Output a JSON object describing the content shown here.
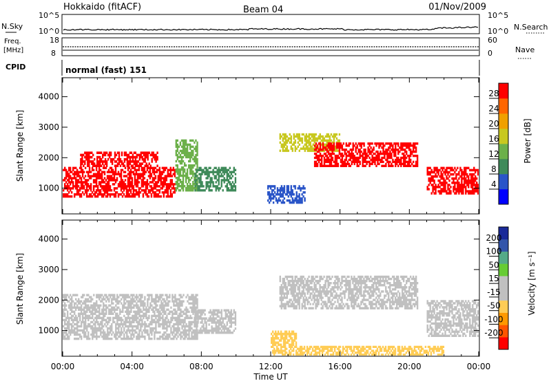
{
  "header": {
    "station": "Hokkaido (fitACF)",
    "beam": "Beam 04",
    "date": "01/Nov/2009"
  },
  "strip_panels": {
    "nsky": {
      "label": "N.Sky",
      "ticks": [
        "10^5",
        "10^0"
      ]
    },
    "nsearch": {
      "label": "N.Search",
      "ticks": [
        "10^5",
        "10^0"
      ]
    },
    "freq": {
      "label_top": "Freq.",
      "label_unit": "[MHz]",
      "ticks": [
        "18",
        "8"
      ]
    },
    "nave": {
      "label": "Nave",
      "ticks": [
        "60",
        "0"
      ]
    },
    "cpid": {
      "label": "CPID",
      "mode": "normal (fast) 151"
    }
  },
  "colors": {
    "power_scale": [
      "#0000ff",
      "#2a55c8",
      "#3f8a5a",
      "#6cb04a",
      "#c8c820",
      "#f0a000",
      "#ff6600",
      "#ff0000"
    ],
    "velocity_scale": [
      "#ff0000",
      "#ff5500",
      "#ff9900",
      "#ffcc55",
      "#c0c0c0",
      "#c0c0c0",
      "#66cc33",
      "#55aa88",
      "#3355aa",
      "#1a2a99"
    ],
    "ground_scatter": "#c0c0c0"
  },
  "chart_data": [
    {
      "type": "heatmap",
      "title": "",
      "xlabel": "Time UT",
      "ylabel": "Slant Range [km]",
      "xlim": [
        "00:00",
        "24:00"
      ],
      "ylim": [
        180,
        4600
      ],
      "x_ticks": [
        "00:00",
        "04:00",
        "08:00",
        "12:00",
        "16:00",
        "20:00",
        "00:00"
      ],
      "y_ticks": [
        "1000",
        "2000",
        "3000",
        "4000"
      ],
      "colorbar": {
        "label": "Power [dB]",
        "ticks": [
          "4",
          "8",
          "12",
          "16",
          "20",
          "24",
          "28"
        ],
        "range": [
          0,
          32
        ]
      },
      "regions": [
        {
          "t_start": 0.0,
          "t_end": 6.5,
          "r_start": 700,
          "r_end": 1700,
          "value": 30
        },
        {
          "t_start": 1.0,
          "t_end": 5.5,
          "r_start": 1700,
          "r_end": 2200,
          "value": 28
        },
        {
          "t_start": 6.5,
          "t_end": 7.8,
          "r_start": 900,
          "r_end": 2600,
          "value": 12
        },
        {
          "t_start": 7.6,
          "t_end": 10.0,
          "r_start": 900,
          "r_end": 1700,
          "value": 8
        },
        {
          "t_start": 11.8,
          "t_end": 14.0,
          "r_start": 500,
          "r_end": 1100,
          "value": 6
        },
        {
          "t_start": 12.5,
          "t_end": 16.0,
          "r_start": 2200,
          "r_end": 2800,
          "value": 16
        },
        {
          "t_start": 14.5,
          "t_end": 20.5,
          "r_start": 1700,
          "r_end": 2500,
          "value": 28
        },
        {
          "t_start": 21.0,
          "t_end": 24.0,
          "r_start": 800,
          "r_end": 1700,
          "value": 30
        }
      ]
    },
    {
      "type": "heatmap",
      "title": "",
      "xlabel": "Time UT",
      "ylabel": "Slant Range [km]",
      "xlim": [
        "00:00",
        "24:00"
      ],
      "ylim": [
        180,
        4600
      ],
      "x_ticks": [
        "00:00",
        "04:00",
        "08:00",
        "12:00",
        "16:00",
        "20:00",
        "00:00"
      ],
      "y_ticks": [
        "1000",
        "2000",
        "3000",
        "4000"
      ],
      "colorbar": {
        "label": "Velocity [m s⁻¹]",
        "ticks": [
          "200",
          "100",
          "50",
          "15",
          "-15",
          "-50",
          "-100",
          "-200"
        ],
        "range": [
          -250,
          250
        ]
      },
      "regions": [
        {
          "t_start": 0.0,
          "t_end": 7.8,
          "r_start": 700,
          "r_end": 2200,
          "value": 0,
          "ground_scatter": true
        },
        {
          "t_start": 7.6,
          "t_end": 10.0,
          "r_start": 900,
          "r_end": 1700,
          "value": 0,
          "ground_scatter": true
        },
        {
          "t_start": 12.5,
          "t_end": 20.5,
          "r_start": 1700,
          "r_end": 2800,
          "value": 0,
          "ground_scatter": true
        },
        {
          "t_start": 21.0,
          "t_end": 24.0,
          "r_start": 800,
          "r_end": 2000,
          "value": 0,
          "ground_scatter": true
        },
        {
          "t_start": 12.0,
          "t_end": 22.0,
          "r_start": 180,
          "r_end": 500,
          "value": -80
        },
        {
          "t_start": 12.0,
          "t_end": 13.5,
          "r_start": 500,
          "r_end": 1000,
          "value": -60
        }
      ]
    }
  ]
}
